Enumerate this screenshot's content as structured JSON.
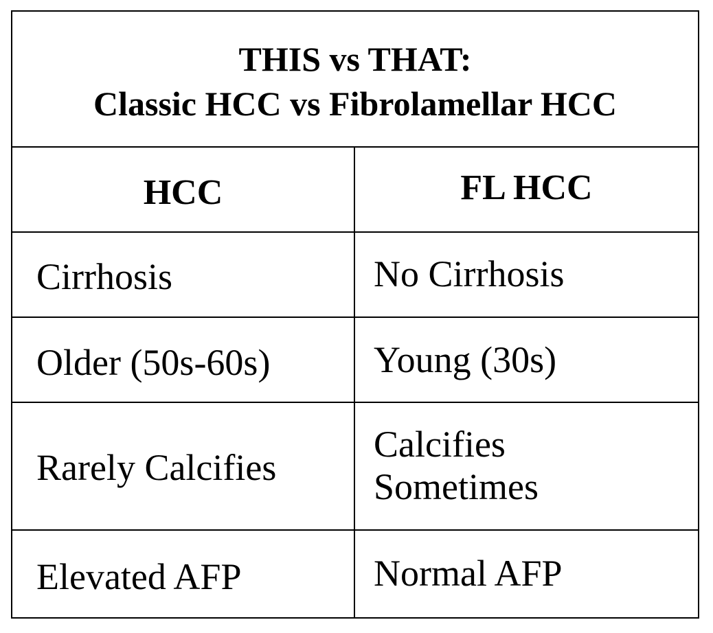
{
  "title": {
    "line1": "THIS vs THAT:",
    "line2": "Classic HCC vs Fibrolamellar HCC"
  },
  "columns": {
    "left": "HCC",
    "right": "FL HCC"
  },
  "rows": [
    {
      "left": "Cirrhosis",
      "right": "No Cirrhosis"
    },
    {
      "left": "Older (50s-60s)",
      "right": "Young (30s)"
    },
    {
      "left": "Rarely Calcifies",
      "right_line1": "Calcifies",
      "right_line2": "Sometimes"
    },
    {
      "left": "Elevated AFP",
      "right": "Normal AFP"
    }
  ]
}
